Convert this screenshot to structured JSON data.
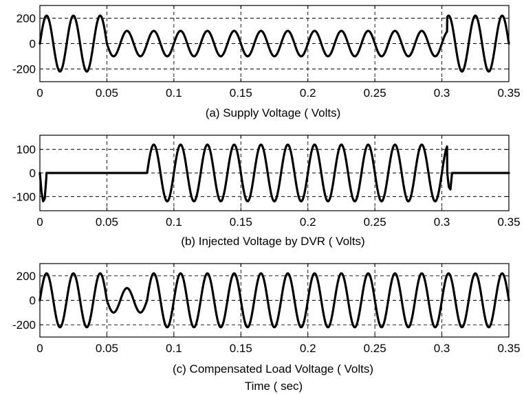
{
  "chart_data": [
    {
      "type": "line",
      "id": "supply",
      "caption": "(a) Supply Voltage ( Volts)",
      "xlim": [
        0,
        0.35
      ],
      "ylim": [
        -300,
        300
      ],
      "xticks": [
        0,
        0.05,
        0.1,
        0.15,
        0.2,
        0.25,
        0.3,
        0.35
      ],
      "xtick_labels": [
        "0",
        "0.05",
        "0.1",
        "0.15",
        "0.2",
        "0.25",
        "0.3",
        "0.35"
      ],
      "yticks": [
        -200,
        0,
        200
      ],
      "ytick_labels": [
        "-200",
        "0",
        "200"
      ],
      "grid": true,
      "series": [
        {
          "frequency_hz": 50,
          "segments": [
            {
              "t_start": 0,
              "t_end": 0.05,
              "amplitude": 220,
              "phase_deg": 0
            },
            {
              "t_start": 0.05,
              "t_end": 0.304,
              "amplitude": 100,
              "phase_deg": 0
            },
            {
              "t_start": 0.304,
              "t_end": 0.35,
              "amplitude": 220,
              "phase_deg": 0
            }
          ]
        }
      ]
    },
    {
      "type": "line",
      "id": "injected",
      "caption": "(b) Injected Voltage by DVR ( Volts)",
      "xlim": [
        0,
        0.35
      ],
      "ylim": [
        -160,
        160
      ],
      "xticks": [
        0,
        0.05,
        0.1,
        0.15,
        0.2,
        0.25,
        0.3,
        0.35
      ],
      "xtick_labels": [
        "0",
        "0.05",
        "0.1",
        "0.15",
        "0.2",
        "0.25",
        "0.3",
        "0.35"
      ],
      "yticks": [
        -100,
        0,
        100
      ],
      "ytick_labels": [
        "-100",
        "0",
        "100"
      ],
      "grid": true,
      "series": [
        {
          "frequency_hz": 50,
          "segments": [
            {
              "t_start": 0,
              "t_end": 0.08,
              "amplitude": 0,
              "phase_deg": 0
            },
            {
              "t_start": 0.08,
              "t_end": 0.304,
              "amplitude": 120,
              "phase_deg": 0
            },
            {
              "t_start": 0.304,
              "t_end": 0.35,
              "amplitude": 0,
              "phase_deg": 0
            }
          ],
          "transients": [
            {
              "t": 0.0,
              "values": [
                0,
                -80,
                -120,
                -110,
                -20
              ]
            },
            {
              "t": 0.304,
              "values": [
                0,
                -60,
                -70,
                0
              ]
            }
          ]
        }
      ]
    },
    {
      "type": "line",
      "id": "load",
      "caption": "(c) Compensated Load Voltage ( Volts)",
      "xlabel": "Time ( sec)",
      "xlim": [
        0,
        0.35
      ],
      "ylim": [
        -300,
        300
      ],
      "xticks": [
        0,
        0.05,
        0.1,
        0.15,
        0.2,
        0.25,
        0.3,
        0.35
      ],
      "xtick_labels": [
        "0",
        "0.05",
        "0.1",
        "0.15",
        "0.2",
        "0.25",
        "0.3",
        "0.35"
      ],
      "yticks": [
        -200,
        0,
        200
      ],
      "ytick_labels": [
        "-200",
        "0",
        "200"
      ],
      "grid": true,
      "series": [
        {
          "frequency_hz": 50,
          "segments": [
            {
              "t_start": 0,
              "t_end": 0.05,
              "amplitude": 220,
              "phase_deg": 0
            },
            {
              "t_start": 0.05,
              "t_end": 0.08,
              "amplitude": 100,
              "phase_deg": 0
            },
            {
              "t_start": 0.08,
              "t_end": 0.35,
              "amplitude": 220,
              "phase_deg": 0
            }
          ]
        }
      ]
    }
  ]
}
